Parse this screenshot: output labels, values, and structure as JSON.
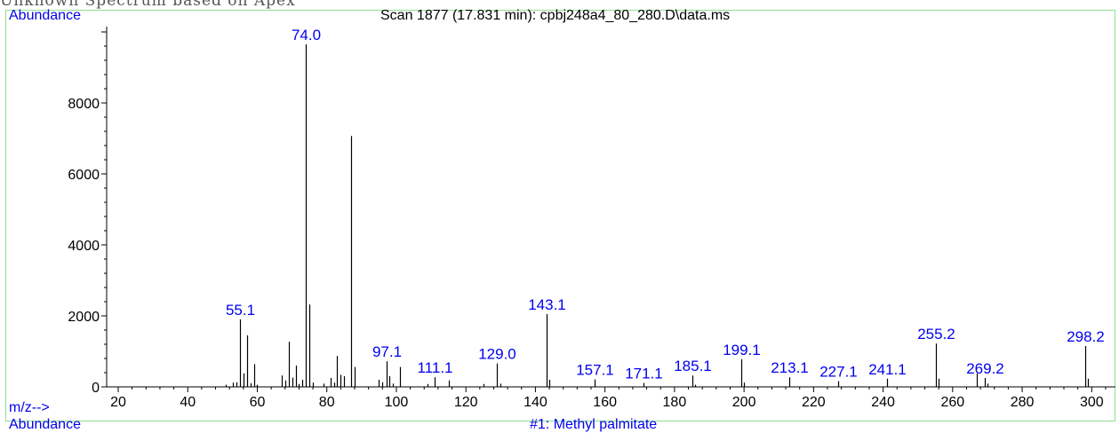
{
  "header_text": "Unknown  Spectrum  based  on  Apex",
  "y_axis_label": "Abundance",
  "x_axis_label": "m/z-->",
  "bottom_left_text": "Abundance",
  "bottom_mid_text": "#1: Methyl palmitate",
  "chart_data": {
    "type": "bar",
    "title": "Scan 1877 (17.831 min): cpbj248a4_80_280.D\\data.ms",
    "xlabel": "m/z-->",
    "ylabel": "Abundance",
    "xlim": [
      15,
      305
    ],
    "ylim": [
      0,
      10200
    ],
    "xticks": [
      20,
      40,
      60,
      80,
      100,
      120,
      140,
      160,
      180,
      200,
      220,
      240,
      260,
      280,
      300
    ],
    "yticks": [
      0,
      2000,
      4000,
      6000,
      8000
    ],
    "grid": false,
    "legend": "none",
    "colors": {
      "peaks": "#000000",
      "peak_labels": "#0000ee",
      "frame": "#8fe08f"
    },
    "peaks": [
      {
        "mz": 51.0,
        "abundance": 60
      },
      {
        "mz": 53.0,
        "abundance": 120
      },
      {
        "mz": 54.0,
        "abundance": 130
      },
      {
        "mz": 55.1,
        "abundance": 1900,
        "label": "55.1"
      },
      {
        "mz": 56.0,
        "abundance": 380
      },
      {
        "mz": 57.0,
        "abundance": 1450
      },
      {
        "mz": 58.0,
        "abundance": 100
      },
      {
        "mz": 59.0,
        "abundance": 640
      },
      {
        "mz": 60.0,
        "abundance": 60
      },
      {
        "mz": 67.0,
        "abundance": 320
      },
      {
        "mz": 68.0,
        "abundance": 180
      },
      {
        "mz": 69.0,
        "abundance": 1270
      },
      {
        "mz": 70.0,
        "abundance": 260
      },
      {
        "mz": 71.0,
        "abundance": 600
      },
      {
        "mz": 72.0,
        "abundance": 80
      },
      {
        "mz": 73.0,
        "abundance": 200
      },
      {
        "mz": 74.0,
        "abundance": 9650,
        "label": "74.0"
      },
      {
        "mz": 75.0,
        "abundance": 2320
      },
      {
        "mz": 76.0,
        "abundance": 120
      },
      {
        "mz": 79.0,
        "abundance": 90
      },
      {
        "mz": 81.0,
        "abundance": 250
      },
      {
        "mz": 82.0,
        "abundance": 120
      },
      {
        "mz": 83.0,
        "abundance": 870
      },
      {
        "mz": 84.0,
        "abundance": 340
      },
      {
        "mz": 85.0,
        "abundance": 300
      },
      {
        "mz": 87.0,
        "abundance": 7070
      },
      {
        "mz": 88.0,
        "abundance": 560
      },
      {
        "mz": 95.0,
        "abundance": 200
      },
      {
        "mz": 96.0,
        "abundance": 130
      },
      {
        "mz": 97.1,
        "abundance": 720,
        "label": "97.1"
      },
      {
        "mz": 98.0,
        "abundance": 300
      },
      {
        "mz": 99.0,
        "abundance": 90
      },
      {
        "mz": 101.0,
        "abundance": 560
      },
      {
        "mz": 109.0,
        "abundance": 80
      },
      {
        "mz": 111.1,
        "abundance": 270,
        "label": "111.1"
      },
      {
        "mz": 115.0,
        "abundance": 180
      },
      {
        "mz": 125.0,
        "abundance": 80
      },
      {
        "mz": 129.0,
        "abundance": 660,
        "label": "129.0"
      },
      {
        "mz": 130.0,
        "abundance": 90
      },
      {
        "mz": 143.1,
        "abundance": 2050,
        "label": "143.1"
      },
      {
        "mz": 144.0,
        "abundance": 200
      },
      {
        "mz": 157.1,
        "abundance": 210,
        "label": "157.1"
      },
      {
        "mz": 171.1,
        "abundance": 110,
        "label": "171.1"
      },
      {
        "mz": 185.1,
        "abundance": 320,
        "label": "185.1"
      },
      {
        "mz": 186.0,
        "abundance": 60
      },
      {
        "mz": 199.1,
        "abundance": 780,
        "label": "199.1"
      },
      {
        "mz": 200.0,
        "abundance": 120
      },
      {
        "mz": 213.1,
        "abundance": 270,
        "label": "213.1"
      },
      {
        "mz": 227.1,
        "abundance": 160,
        "label": "227.1"
      },
      {
        "mz": 241.1,
        "abundance": 230,
        "label": "241.1"
      },
      {
        "mz": 255.2,
        "abundance": 1220,
        "label": "255.2"
      },
      {
        "mz": 256.0,
        "abundance": 230
      },
      {
        "mz": 267.0,
        "abundance": 380
      },
      {
        "mz": 269.2,
        "abundance": 250,
        "label": "269.2"
      },
      {
        "mz": 270.0,
        "abundance": 90
      },
      {
        "mz": 298.2,
        "abundance": 1150,
        "label": "298.2"
      },
      {
        "mz": 299.0,
        "abundance": 230
      }
    ]
  }
}
